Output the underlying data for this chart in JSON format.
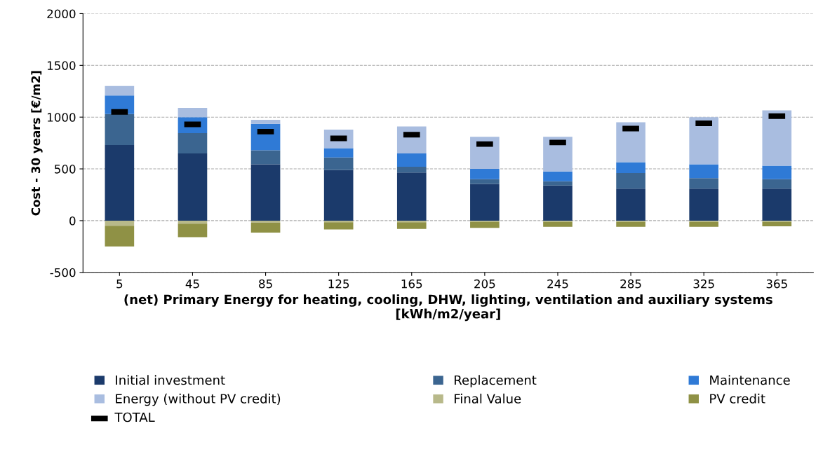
{
  "chart_data": {
    "type": "bar",
    "stacked": true,
    "categories": [
      "5",
      "45",
      "85",
      "125",
      "165",
      "205",
      "245",
      "285",
      "325",
      "365"
    ],
    "xlabel": "(net) Primary Energy for heating, cooling, DHW, lighting, ventilation and auxiliary systems\n[kWh/m2/year]",
    "ylabel": "Cost - 30 years [€/m2]",
    "ylim": [
      -500,
      2000
    ],
    "yticks": [
      -500,
      0,
      500,
      1000,
      1500,
      2000
    ],
    "grid": "y",
    "legend": "bottom",
    "series": [
      {
        "name": "Initial investment",
        "color": "#1b3a6b",
        "values": [
          730,
          650,
          545,
          490,
          465,
          355,
          340,
          310,
          310,
          310
        ]
      },
      {
        "name": "Replacement",
        "color": "#3b6590",
        "values": [
          300,
          195,
          135,
          120,
          55,
          45,
          40,
          150,
          100,
          90
        ]
      },
      {
        "name": "Maintenance",
        "color": "#2f7ad6",
        "values": [
          180,
          155,
          255,
          90,
          130,
          100,
          95,
          105,
          135,
          130
        ]
      },
      {
        "name": "Energy (without PV credit)",
        "color": "#a9bde0",
        "values": [
          90,
          90,
          40,
          180,
          260,
          310,
          335,
          385,
          455,
          535
        ]
      },
      {
        "name": "Final Value",
        "color": "#b8b98a",
        "values": [
          -50,
          -30,
          -20,
          -15,
          -15,
          -10,
          -10,
          -10,
          -10,
          -10
        ]
      },
      {
        "name": "PV credit",
        "color": "#8f9145",
        "values": [
          -200,
          -130,
          -95,
          -70,
          -65,
          -60,
          -50,
          -50,
          -50,
          -45
        ]
      },
      {
        "name": "TOTAL",
        "type": "scatter",
        "color": "#000000",
        "values": [
          1050,
          930,
          860,
          795,
          830,
          740,
          755,
          890,
          940,
          1010
        ]
      }
    ]
  }
}
